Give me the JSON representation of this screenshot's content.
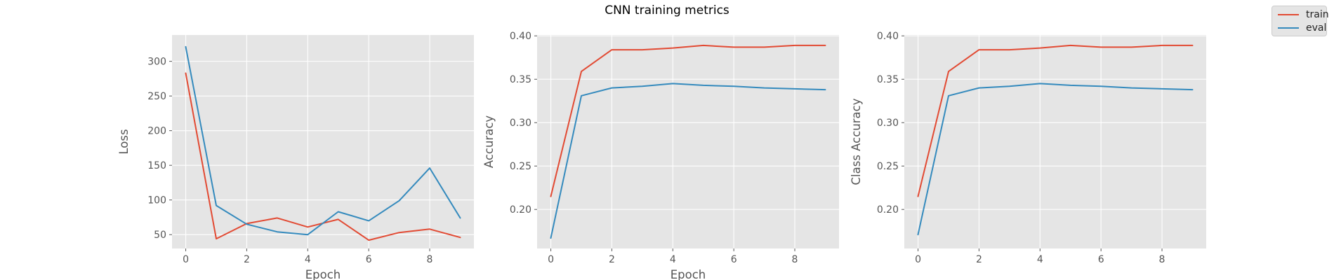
{
  "figure": {
    "title": "CNN training metrics",
    "colors": {
      "background": "#e5e5e5",
      "grid": "#ffffff",
      "train": "#e24a33",
      "eval": "#348abd"
    }
  },
  "legend": {
    "placement": "top-right",
    "entries": [
      {
        "label": "train",
        "color": "#e24a33"
      },
      {
        "label": "eval",
        "color": "#348abd"
      }
    ]
  },
  "chart_data": [
    {
      "type": "line",
      "xlabel": "Epoch",
      "ylabel": "Loss",
      "x": [
        0,
        1,
        2,
        3,
        4,
        5,
        6,
        7,
        8,
        9
      ],
      "xlim": [
        -0.45,
        9.45
      ],
      "ylim": [
        30,
        338
      ],
      "xticks": [
        0,
        2,
        4,
        6,
        8
      ],
      "yticks": [
        50,
        100,
        150,
        200,
        250,
        300
      ],
      "grid": true,
      "series": [
        {
          "name": "train",
          "color": "#e24a33",
          "values": [
            283,
            44,
            66,
            74,
            61,
            72,
            42,
            53,
            58,
            46
          ]
        },
        {
          "name": "eval",
          "color": "#348abd",
          "values": [
            321,
            92,
            65,
            54,
            50,
            83,
            70,
            99,
            146,
            74
          ]
        }
      ]
    },
    {
      "type": "line",
      "xlabel": "Epoch",
      "ylabel": "Accuracy",
      "x": [
        0,
        1,
        2,
        3,
        4,
        5,
        6,
        7,
        8,
        9
      ],
      "xlim": [
        -0.45,
        9.45
      ],
      "ylim": [
        0.155,
        0.401
      ],
      "xticks": [
        0,
        2,
        4,
        6,
        8
      ],
      "yticks": [
        0.2,
        0.25,
        0.3,
        0.35,
        0.4
      ],
      "ytick_labels": [
        "0.20",
        "0.25",
        "0.30",
        "0.35",
        "0.40"
      ],
      "grid": true,
      "series": [
        {
          "name": "train",
          "color": "#e24a33",
          "values": [
            0.215,
            0.359,
            0.384,
            0.384,
            0.386,
            0.389,
            0.387,
            0.387,
            0.389,
            0.389
          ]
        },
        {
          "name": "eval",
          "color": "#348abd",
          "values": [
            0.167,
            0.331,
            0.34,
            0.342,
            0.345,
            0.343,
            0.342,
            0.34,
            0.339,
            0.338
          ]
        }
      ]
    },
    {
      "type": "line",
      "xlabel": "",
      "ylabel": "Class Accuracy",
      "x": [
        0,
        1,
        2,
        3,
        4,
        5,
        6,
        7,
        8,
        9
      ],
      "xlim": [
        -0.45,
        9.45
      ],
      "ylim": [
        0.155,
        0.401
      ],
      "xticks": [
        0,
        2,
        4,
        6,
        8
      ],
      "yticks": [
        0.2,
        0.25,
        0.3,
        0.35,
        0.4
      ],
      "ytick_labels": [
        "0.20",
        "0.25",
        "0.30",
        "0.35",
        "0.40"
      ],
      "grid": true,
      "series": [
        {
          "name": "train",
          "color": "#e24a33",
          "values": [
            0.215,
            0.359,
            0.384,
            0.384,
            0.386,
            0.389,
            0.387,
            0.387,
            0.389,
            0.389
          ]
        },
        {
          "name": "eval",
          "color": "#348abd",
          "values": [
            0.171,
            0.331,
            0.34,
            0.342,
            0.345,
            0.343,
            0.342,
            0.34,
            0.339,
            0.338
          ]
        }
      ]
    }
  ]
}
